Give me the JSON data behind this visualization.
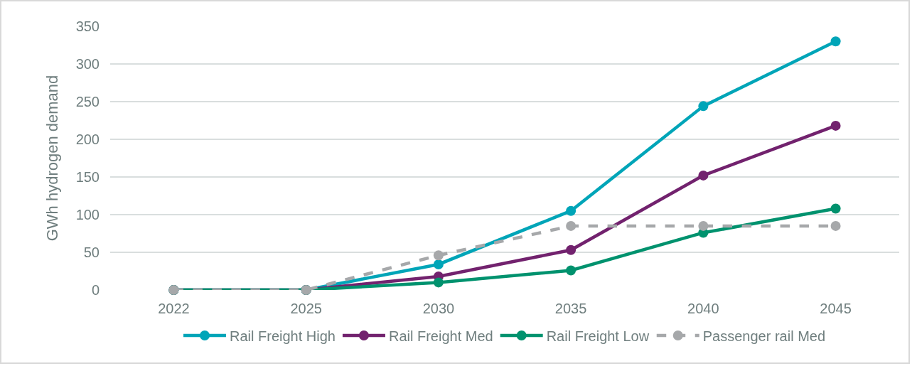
{
  "chart_data": {
    "type": "line",
    "ylabel": "GWh hydrogen demand",
    "categories": [
      "2022",
      "2025",
      "2030",
      "2035",
      "2040",
      "2045"
    ],
    "series": [
      {
        "name": "Rail Freight High",
        "color": "#00a5b8",
        "values": [
          0,
          0,
          34,
          105,
          244,
          330
        ]
      },
      {
        "name": "Rail Freight Med",
        "color": "#72226e",
        "values": [
          0,
          0,
          18,
          53,
          152,
          218
        ]
      },
      {
        "name": "Rail Freight Low",
        "color": "#00926e",
        "values": [
          0,
          0,
          10,
          26,
          76,
          108
        ]
      },
      {
        "name": "Passenger rail Med",
        "color": "#a6a8aa",
        "values": [
          0,
          0,
          46,
          85,
          85,
          85
        ],
        "line_style": "dashed"
      }
    ],
    "ylim": [
      0,
      350
    ],
    "yticks": [
      0,
      50,
      100,
      150,
      200,
      250,
      300,
      350
    ],
    "grid": "y",
    "legend": "bottom",
    "marker": "circle",
    "line_style": "solid"
  }
}
